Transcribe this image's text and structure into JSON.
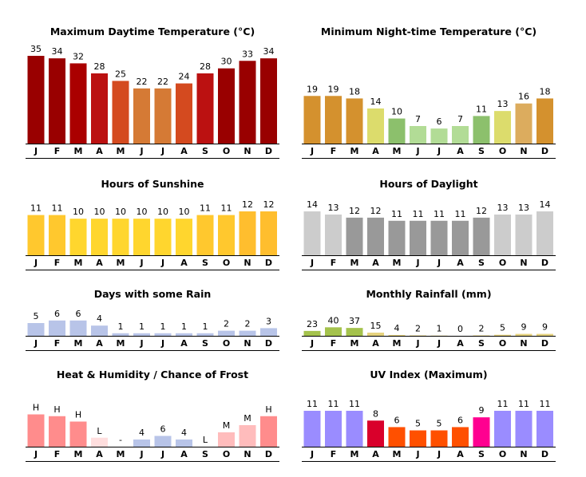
{
  "months": [
    "J",
    "F",
    "M",
    "A",
    "M",
    "J",
    "J",
    "A",
    "S",
    "O",
    "N",
    "D"
  ],
  "chart_data": [
    {
      "type": "bar",
      "title": "Maximum Daytime Temperature (°C)",
      "categories": [
        "J",
        "F",
        "M",
        "A",
        "M",
        "J",
        "J",
        "A",
        "S",
        "O",
        "N",
        "D"
      ],
      "values": [
        35,
        34,
        32,
        28,
        25,
        22,
        22,
        24,
        28,
        30,
        33,
        34
      ],
      "labels": [
        "35",
        "34",
        "32",
        "28",
        "25",
        "22",
        "22",
        "24",
        "28",
        "30",
        "33",
        "34"
      ],
      "colors": [
        "#990000",
        "#990000",
        "#aa0000",
        "#bb1111",
        "#d44a1f",
        "#d57a35",
        "#d57a35",
        "#d44a1f",
        "#bb1111",
        "#990000",
        "#990000",
        "#990000"
      ],
      "ylim": [
        0,
        35
      ]
    },
    {
      "type": "bar",
      "title": "Minimum Night-time Temperature (°C)",
      "categories": [
        "J",
        "F",
        "M",
        "A",
        "M",
        "J",
        "J",
        "A",
        "S",
        "O",
        "N",
        "D"
      ],
      "values": [
        19,
        19,
        18,
        14,
        10,
        7,
        6,
        7,
        11,
        13,
        16,
        18
      ],
      "labels": [
        "19",
        "19",
        "18",
        "14",
        "10",
        "7",
        "6",
        "7",
        "11",
        "13",
        "16",
        "18"
      ],
      "colors": [
        "#d4912e",
        "#d4912e",
        "#d4912e",
        "#dcdc6c",
        "#8cc06c",
        "#b2dc96",
        "#b2dc96",
        "#b2dc96",
        "#8cc06c",
        "#dcdc6c",
        "#dcac5e",
        "#d4912e"
      ],
      "ylim": [
        0,
        35
      ]
    },
    {
      "type": "bar",
      "title": "Hours of Sunshine",
      "categories": [
        "J",
        "F",
        "M",
        "A",
        "M",
        "J",
        "J",
        "A",
        "S",
        "O",
        "N",
        "D"
      ],
      "values": [
        11,
        11,
        10,
        10,
        10,
        10,
        10,
        10,
        11,
        11,
        12,
        12
      ],
      "labels": [
        "11",
        "11",
        "10",
        "10",
        "10",
        "10",
        "10",
        "10",
        "11",
        "11",
        "12",
        "12"
      ],
      "colors": [
        "#ffc82e",
        "#ffc82e",
        "#ffd62e",
        "#ffd62e",
        "#ffd62e",
        "#ffd62e",
        "#ffd62e",
        "#ffd62e",
        "#ffc82e",
        "#ffc82e",
        "#ffbe2e",
        "#ffbe2e"
      ],
      "ylim": [
        0,
        12
      ]
    },
    {
      "type": "bar",
      "title": "Hours of Daylight",
      "categories": [
        "J",
        "F",
        "M",
        "A",
        "M",
        "J",
        "J",
        "A",
        "S",
        "O",
        "N",
        "D"
      ],
      "values": [
        14,
        13,
        12,
        12,
        11,
        11,
        11,
        11,
        12,
        13,
        13,
        14
      ],
      "labels": [
        "14",
        "13",
        "12",
        "12",
        "11",
        "11",
        "11",
        "11",
        "12",
        "13",
        "13",
        "14"
      ],
      "colors": [
        "#cccccc",
        "#cccccc",
        "#999999",
        "#999999",
        "#999999",
        "#999999",
        "#999999",
        "#999999",
        "#999999",
        "#cccccc",
        "#cccccc",
        "#cccccc"
      ],
      "ylim": [
        0,
        14
      ]
    },
    {
      "type": "bar",
      "title": "Days with some Rain",
      "categories": [
        "J",
        "F",
        "M",
        "A",
        "M",
        "J",
        "J",
        "A",
        "S",
        "O",
        "N",
        "D"
      ],
      "values": [
        5,
        6,
        6,
        4,
        1,
        1,
        1,
        1,
        1,
        2,
        2,
        3
      ],
      "labels": [
        "5",
        "6",
        "6",
        "4",
        "1",
        "1",
        "1",
        "1",
        "1",
        "2",
        "2",
        "3"
      ],
      "colors": [
        "#b8c4e8",
        "#b8c4e8",
        "#b8c4e8",
        "#b8c4e8",
        "#b8c4e8",
        "#b8c4e8",
        "#b8c4e8",
        "#b8c4e8",
        "#b8c4e8",
        "#b8c4e8",
        "#b8c4e8",
        "#b8c4e8"
      ],
      "ylim": [
        0,
        25
      ]
    },
    {
      "type": "bar",
      "title": "Monthly Rainfall (mm)",
      "categories": [
        "J",
        "F",
        "M",
        "A",
        "M",
        "J",
        "J",
        "A",
        "S",
        "O",
        "N",
        "D"
      ],
      "values": [
        23,
        40,
        37,
        15,
        4,
        2,
        1,
        0,
        2,
        5,
        9,
        9
      ],
      "labels": [
        "23",
        "40",
        "37",
        "15",
        "4",
        "2",
        "1",
        "0",
        "2",
        "5",
        "9",
        "9"
      ],
      "colors": [
        "#a4c24c",
        "#a4c24c",
        "#a4c24c",
        "#e6d37e",
        "#e6d37e",
        "#e6d37e",
        "#e6d37e",
        "#e6d37e",
        "#e6d37e",
        "#e6d37e",
        "#e6d37e",
        "#e6d37e"
      ],
      "ylim": [
        0,
        300
      ]
    },
    {
      "type": "bar",
      "title": "Heat & Humidity / Chance of Frost",
      "categories": [
        "J",
        "F",
        "M",
        "A",
        "M",
        "J",
        "J",
        "A",
        "S",
        "O",
        "N",
        "D"
      ],
      "values": [
        0.9,
        0.85,
        0.7,
        0.25,
        0,
        0.2,
        0.3,
        0.2,
        0,
        0.4,
        0.6,
        0.85
      ],
      "labels": [
        "H",
        "H",
        "H",
        "L",
        "-",
        "4",
        "6",
        "4",
        "L",
        "M",
        "M",
        "H"
      ],
      "colors": [
        "#ff8c8c",
        "#ff8c8c",
        "#ff8c8c",
        "#ffdede",
        "#ffffff",
        "#b8c4e8",
        "#b8c4e8",
        "#b8c4e8",
        "#ffffff",
        "#ffbcbc",
        "#ffbcbc",
        "#ff8c8c"
      ],
      "ylim": [
        0,
        1
      ]
    },
    {
      "type": "bar",
      "title": "UV Index (Maximum)",
      "categories": [
        "J",
        "F",
        "M",
        "A",
        "M",
        "J",
        "J",
        "A",
        "S",
        "O",
        "N",
        "D"
      ],
      "values": [
        11,
        11,
        11,
        8,
        6,
        5,
        5,
        6,
        9,
        11,
        11,
        11
      ],
      "labels": [
        "11",
        "11",
        "11",
        "8",
        "6",
        "5",
        "5",
        "6",
        "9",
        "11",
        "11",
        "11"
      ],
      "colors": [
        "#9a8cff",
        "#9a8cff",
        "#9a8cff",
        "#d9002b",
        "#ff5000",
        "#ff5000",
        "#ff5000",
        "#ff5000",
        "#ff0090",
        "#9a8cff",
        "#9a8cff",
        "#9a8cff"
      ],
      "ylim": [
        0,
        11
      ]
    }
  ]
}
